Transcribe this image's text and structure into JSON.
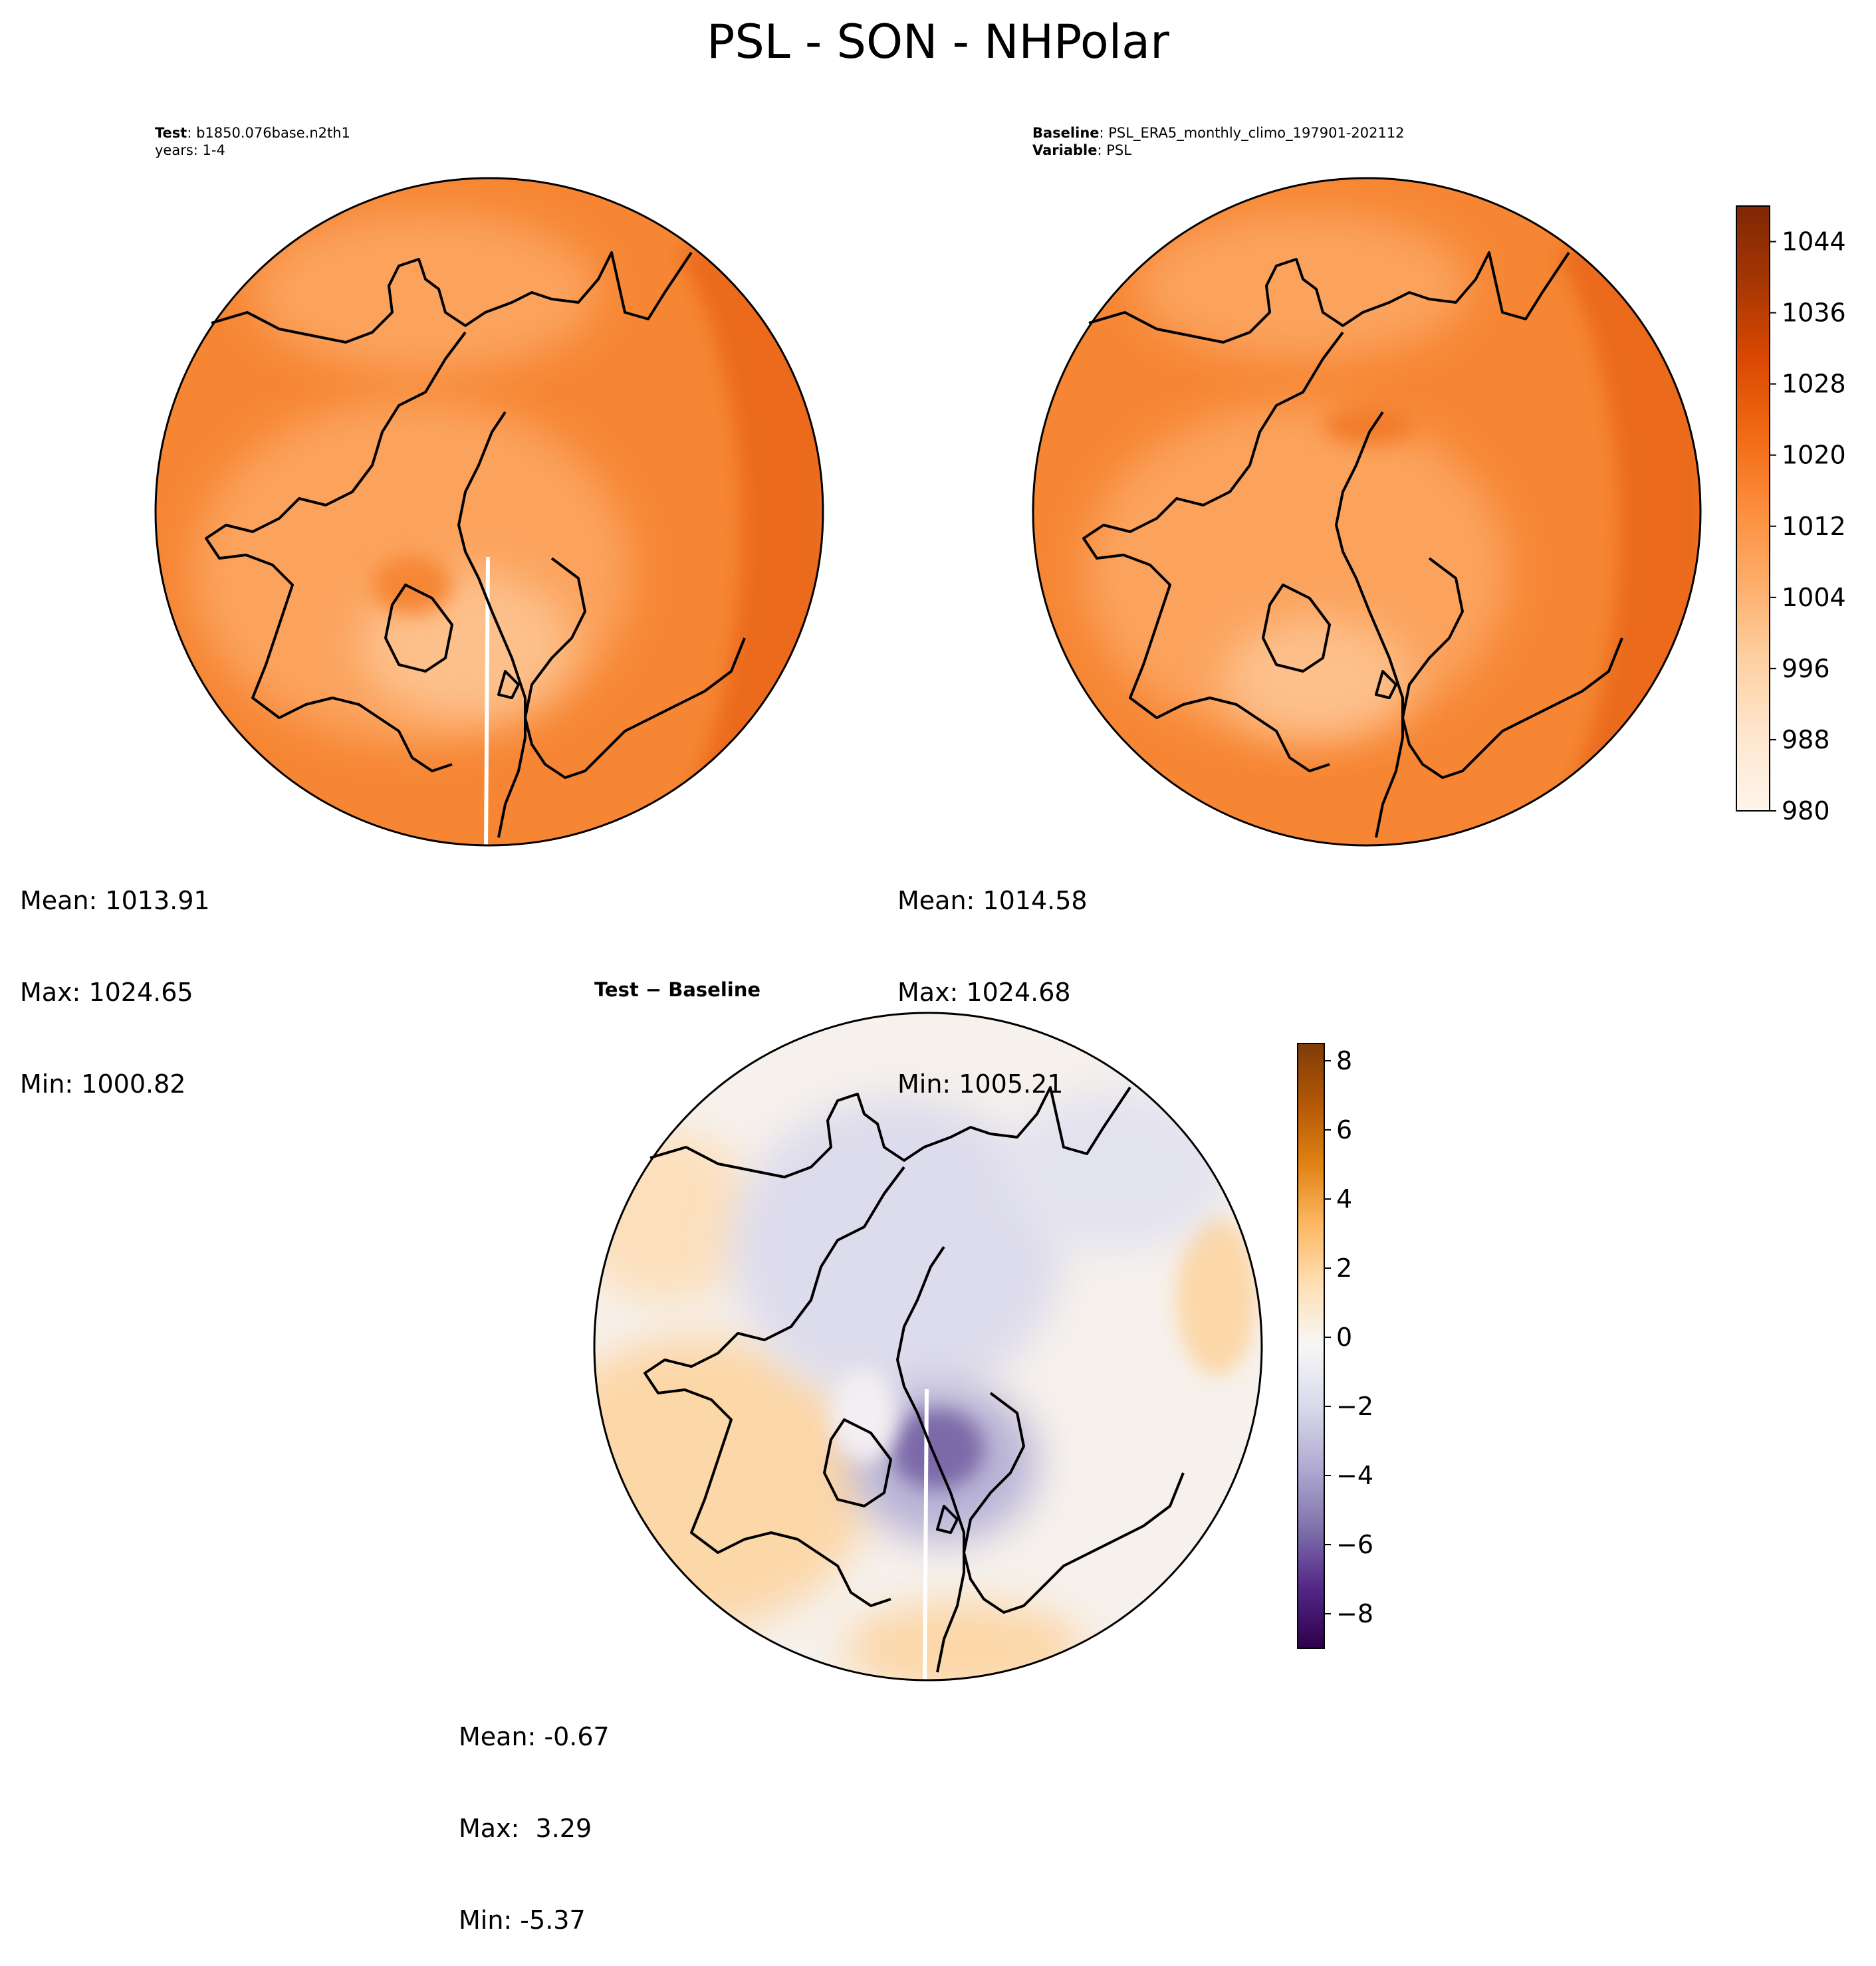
{
  "figure": {
    "title": "PSL - SON - NHPolar"
  },
  "panels": {
    "test": {
      "label_bold": "Test",
      "label_text": ": b1850.076base.n2th1",
      "years": "years: 1-4",
      "mean": "Mean: 1013.91",
      "max": "Max: 1024.65",
      "min": "Min: 1000.82"
    },
    "baseline": {
      "label_bold": "Baseline",
      "label_text": ": PSL_ERA5_monthly_climo_197901-202112",
      "variable_bold": "Variable",
      "variable_text": ": PSL",
      "mean": "Mean: 1014.58",
      "max": "Max: 1024.68",
      "min": "Min: 1005.21"
    },
    "difference": {
      "title": "Test − Baseline",
      "mean": "Mean: -0.67",
      "max": "Max:  3.29",
      "min": "Min: -5.37"
    }
  },
  "chart_data": [
    {
      "type": "heatmap",
      "panel": "test",
      "projection": "north-polar-stereographic",
      "colormap": "Oranges",
      "levels": [
        980,
        1048
      ],
      "stats": {
        "mean": 1013.91,
        "max": 1024.65,
        "min": 1000.82
      },
      "colors": {
        "base": "#f68634",
        "mid": "#fba35d",
        "low": "#fdc08b",
        "high": "#eb6b1f"
      }
    },
    {
      "type": "heatmap",
      "panel": "baseline",
      "projection": "north-polar-stereographic",
      "colormap": "Oranges",
      "levels": [
        980,
        1048
      ],
      "stats": {
        "mean": 1014.58,
        "max": 1024.68,
        "min": 1005.21
      },
      "colorbar": {
        "ticks": [
          980,
          988,
          996,
          1004,
          1012,
          1020,
          1028,
          1036,
          1044
        ],
        "tick_labels": [
          "980",
          "988",
          "996",
          "1004",
          "1012",
          "1020",
          "1028",
          "1036",
          "1044"
        ],
        "range": [
          980,
          1048
        ],
        "colors": [
          "#fff5eb",
          "#fee6ce",
          "#fdd0a2",
          "#fdae6b",
          "#fd8d3c",
          "#f16913",
          "#d94801",
          "#a63603",
          "#7f2704"
        ]
      },
      "colors": {
        "base": "#f68634",
        "mid": "#fba35d",
        "low": "#fdc08b",
        "high": "#eb6b1f"
      }
    },
    {
      "type": "heatmap",
      "panel": "difference",
      "projection": "north-polar-stereographic",
      "colormap": "PuOr_r",
      "levels": [
        -9,
        8.5
      ],
      "stats": {
        "mean": -0.67,
        "max": 3.29,
        "min": -5.37
      },
      "colorbar": {
        "ticks": [
          -8,
          -6,
          -4,
          -2,
          0,
          2,
          4,
          6,
          8
        ],
        "tick_labels": [
          "−8",
          "−6",
          "−4",
          "−2",
          "0",
          "2",
          "4",
          "6",
          "8"
        ],
        "range": [
          -9,
          8.5
        ],
        "colors": [
          "#2d004b",
          "#542788",
          "#8073ac",
          "#b2abd2",
          "#d8daeb",
          "#f7f7f7",
          "#fee0b6",
          "#fdb863",
          "#e08214",
          "#b35806",
          "#7f3b08"
        ]
      },
      "colors": {
        "base": "#f6f1ec",
        "warm": "#fcd7a8",
        "cool": "#d9d8eb",
        "deep": "#7b6aa8"
      }
    }
  ]
}
